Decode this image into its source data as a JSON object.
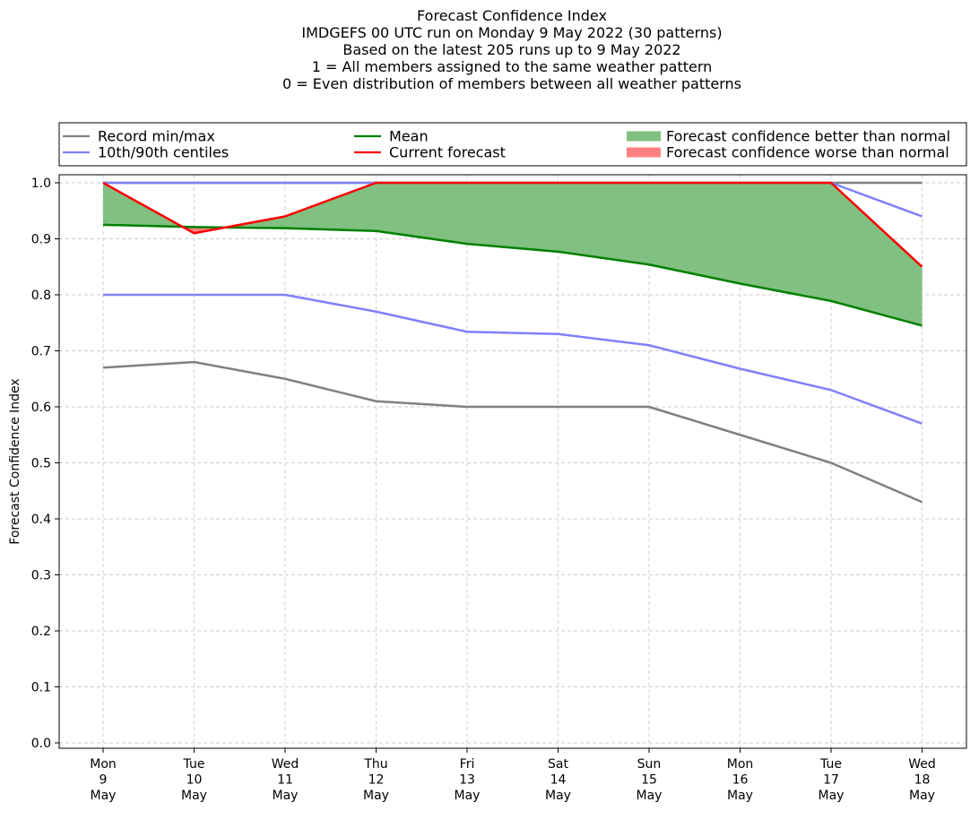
{
  "chart_data": {
    "type": "line",
    "title_lines": [
      "Forecast Confidence Index",
      "IMDGEFS 00 UTC run on Monday 9 May 2022 (30 patterns)",
      "Based on the latest 205 runs up to 9 May 2022",
      "1 = All members assigned to the same weather pattern",
      "0 = Even distribution of members between all weather patterns"
    ],
    "ylabel": "Forecast Confidence Index",
    "ylim": [
      0,
      1
    ],
    "yticks": [
      "0.0",
      "0.1",
      "0.2",
      "0.3",
      "0.4",
      "0.5",
      "0.6",
      "0.7",
      "0.8",
      "0.9",
      "1.0"
    ],
    "grid": true,
    "categories": [
      [
        "Mon",
        "9",
        "May"
      ],
      [
        "Tue",
        "10",
        "May"
      ],
      [
        "Wed",
        "11",
        "May"
      ],
      [
        "Thu",
        "12",
        "May"
      ],
      [
        "Fri",
        "13",
        "May"
      ],
      [
        "Sat",
        "14",
        "May"
      ],
      [
        "Sun",
        "15",
        "May"
      ],
      [
        "Mon",
        "16",
        "May"
      ],
      [
        "Tue",
        "17",
        "May"
      ],
      [
        "Wed",
        "18",
        "May"
      ]
    ],
    "series": [
      {
        "name": "Record min/max",
        "key": "record_min",
        "color": "#808080",
        "values": [
          0.67,
          0.68,
          0.65,
          0.61,
          0.6,
          0.6,
          0.6,
          0.55,
          0.5,
          0.43
        ]
      },
      {
        "key": "record_max",
        "color": "#808080",
        "values": [
          1.0,
          1.0,
          1.0,
          1.0,
          1.0,
          1.0,
          1.0,
          1.0,
          1.0,
          1.0
        ]
      },
      {
        "name": "10th/90th centiles",
        "key": "p10",
        "color": "#8080ff",
        "values": [
          0.8,
          0.8,
          0.8,
          0.77,
          0.734,
          0.73,
          0.71,
          0.668,
          0.63,
          0.57
        ]
      },
      {
        "key": "p90",
        "color": "#8080ff",
        "values": [
          1.0,
          1.0,
          1.0,
          1.0,
          1.0,
          1.0,
          1.0,
          1.0,
          1.0,
          0.94
        ]
      },
      {
        "name": "Mean",
        "key": "mean",
        "color": "#008000",
        "values": [
          0.925,
          0.921,
          0.919,
          0.914,
          0.891,
          0.877,
          0.854,
          0.82,
          0.789,
          0.745
        ]
      },
      {
        "name": "Current forecast",
        "key": "current",
        "color": "#ff0000",
        "values": [
          1.0,
          0.91,
          0.94,
          1.0,
          1.0,
          1.0,
          1.0,
          1.0,
          1.0,
          0.85
        ]
      }
    ],
    "fills": [
      {
        "name": "Forecast confidence better than normal",
        "color": "#80c080"
      },
      {
        "name": "Forecast confidence worse than normal",
        "color": "#ff8080"
      }
    ],
    "legend": {
      "placement": "top",
      "entries": [
        {
          "label": "Record min/max",
          "kind": "line",
          "color": "#808080"
        },
        {
          "label": "Mean",
          "kind": "line",
          "color": "#008000"
        },
        {
          "label": "Forecast confidence better than normal",
          "kind": "patch",
          "color": "#80c080"
        },
        {
          "label": "10th/90th centiles",
          "kind": "line",
          "color": "#8080ff"
        },
        {
          "label": "Current forecast",
          "kind": "line",
          "color": "#ff0000"
        },
        {
          "label": "Forecast confidence worse than normal",
          "kind": "patch",
          "color": "#ff8080"
        }
      ]
    }
  }
}
